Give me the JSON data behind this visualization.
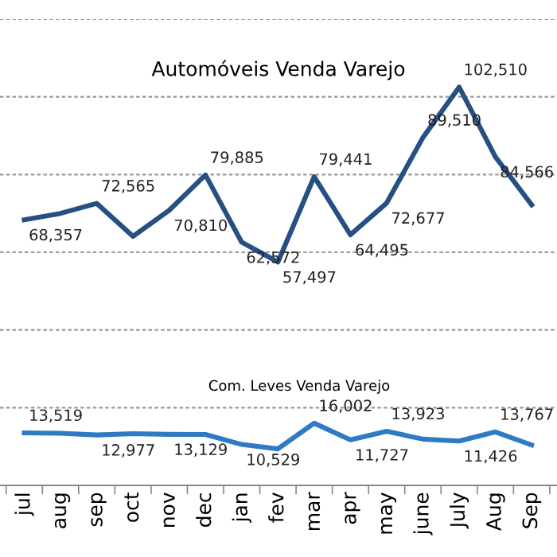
{
  "chart_data": {
    "type": "line",
    "title": "Automóveis Venda Varejo",
    "annotations": [
      "Com. Leves Venda Varejo"
    ],
    "categories": [
      "jul",
      "aug",
      "sep",
      "oct",
      "nov",
      "dec",
      "jan",
      "fev",
      "mar",
      "apr",
      "may",
      "june",
      "July",
      "Aug",
      "Sep"
    ],
    "series": [
      {
        "color": "#264f82",
        "values": [
          68357,
          70000,
          72565,
          64100,
          70810,
          79885,
          62572,
          57497,
          79441,
          64495,
          72677,
          89510,
          102510,
          84566,
          72200
        ],
        "value_labels": [
          "68,357",
          null,
          "72,565",
          null,
          "70,810",
          "79,885",
          "62,572",
          "57,497",
          "79,441",
          "64,495",
          "72,677",
          "89,510",
          "102,510",
          "84,566",
          null
        ]
      },
      {
        "color": "#2e7bc4",
        "values": [
          13519,
          13400,
          12977,
          13300,
          13129,
          13100,
          10529,
          9400,
          16002,
          11727,
          13923,
          11900,
          11426,
          13767,
          10400
        ],
        "value_labels": [
          "13,519",
          null,
          "12,977",
          null,
          "13,129",
          null,
          "10,529",
          null,
          "16,002",
          "11,727",
          "13,923",
          null,
          "11,426",
          "13,767",
          null
        ]
      }
    ],
    "ylim": [
      0,
      120000
    ],
    "yticks": [
      {
        "value": 0,
        "label": null
      },
      {
        "value": 20000,
        "label": null
      },
      {
        "value": 40000,
        "label": null
      },
      {
        "value": 60000,
        "label": null
      },
      {
        "value": 80000,
        "label": null
      },
      {
        "value": 100000,
        "label": null
      },
      {
        "value": 120000,
        "label": null
      }
    ],
    "tick_labels": "x",
    "grid": "y",
    "legend": false,
    "marker": "none",
    "line_style": "solid"
  }
}
